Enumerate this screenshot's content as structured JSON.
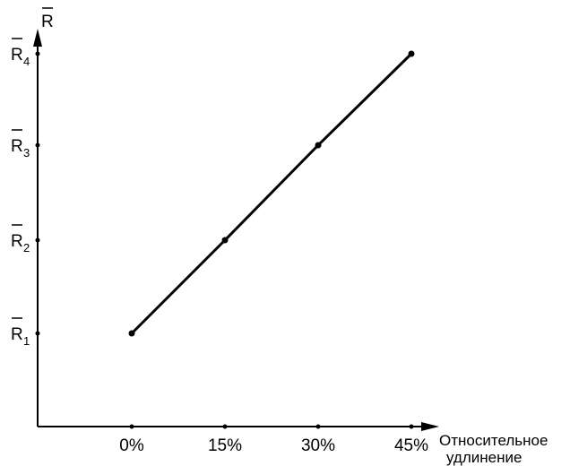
{
  "chart_data": {
    "type": "line",
    "title": "",
    "xlabel": [
      "Относительное",
      "удлинение"
    ],
    "ylabel": "R",
    "ylabel_overline": true,
    "x_categories": [
      "0%",
      "15%",
      "30%",
      "45%"
    ],
    "y_categories": [
      {
        "base": "R",
        "sub": "1"
      },
      {
        "base": "R",
        "sub": "2"
      },
      {
        "base": "R",
        "sub": "3"
      },
      {
        "base": "R",
        "sub": "4"
      }
    ],
    "series": [
      {
        "points": [
          {
            "x": "0%",
            "y": 1
          },
          {
            "x": "15%",
            "y": 2
          },
          {
            "x": "30%",
            "y": 3
          },
          {
            "x": "45%",
            "y": 4
          }
        ]
      }
    ],
    "grid": false,
    "legend": "none",
    "colors": {
      "line": "#000000",
      "axis": "#000000"
    }
  }
}
